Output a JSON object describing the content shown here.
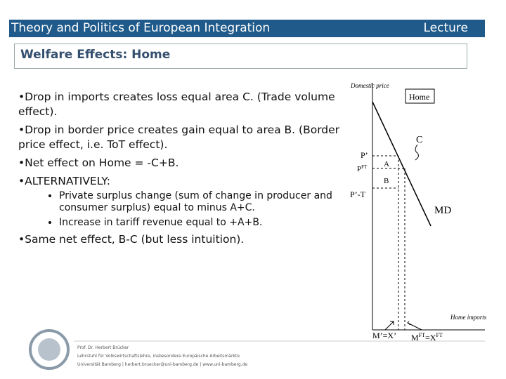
{
  "header": {
    "title": "Theory and Politics of European Integration",
    "right": "Lecture"
  },
  "slide_title": "Welfare Effects: Home",
  "bullets": [
    {
      "text": "Drop in imports creates loss equal area C. (Trade volume effect)."
    },
    {
      "text": "Drop in border price creates gain equal to area B. (Border price effect, i.e. ToT effect)."
    },
    {
      "text": "Net effect on Home = -C+B."
    },
    {
      "text": "ALTERNATIVELY:",
      "sub": [
        "Private surplus change (sum of change in producer and consumer surplus) equal to minus A+C.",
        "Increase in tariff revenue equal to +A+B."
      ]
    },
    {
      "text": "Same net effect, B-C (but less intuition)."
    }
  ],
  "diagram": {
    "y_axis": "Domestic price",
    "x_axis": "Home imports",
    "box": "Home",
    "curve": "MD",
    "area_c": "C",
    "area_a": "A",
    "area_b": "B",
    "p_prime": "P’",
    "p_ft": {
      "base": "P",
      "sup": "FT"
    },
    "p_prime_t": "P’-T",
    "m_prime": "M’=X’",
    "m_ft": {
      "base": "M",
      "sup1": "FT",
      "mid": "=X",
      "sup2": "FT"
    }
  },
  "footer": [
    "Prof. Dr. Herbert Brücker",
    "Lehrstuhl für Volkswirtschaftslehre, insbesondere Europäische Arbeitsmärkte",
    "Universität Bamberg | herbert.bruecker@uni-bamberg.de | www.uni-bamberg.de"
  ]
}
